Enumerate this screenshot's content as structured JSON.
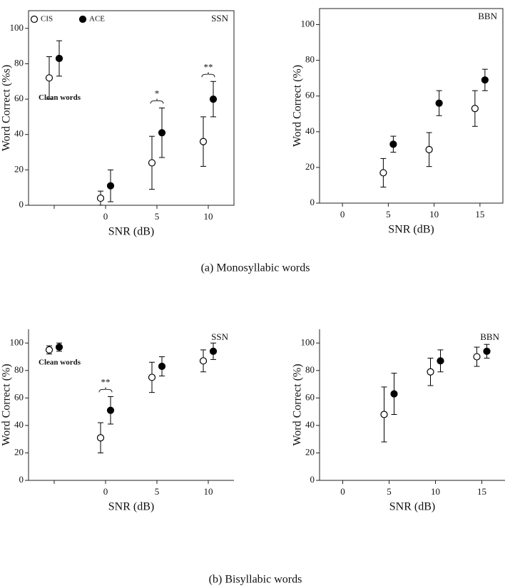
{
  "captions": [
    "(a) Monosyllabic words",
    "(b) Bisyllabic words"
  ],
  "chart_data": [
    {
      "type": "scatter",
      "ylabel": "Word Correct (%s)",
      "xlabel": "SNR (dB)",
      "noise": "SSN",
      "note": "Clean words",
      "categories": [
        null,
        "0",
        "5",
        "10"
      ],
      "ylim": [
        0,
        110
      ],
      "yticks": [
        0,
        20,
        40,
        60,
        80,
        100
      ],
      "frame": true,
      "legend": "upper left",
      "significance": [
        {
          "category": "5",
          "text": "*"
        },
        {
          "category": "10",
          "text": "**"
        }
      ],
      "series": [
        {
          "name": "CIS",
          "color": "#000000",
          "marker_fill": "#ffffff",
          "values": [
            72,
            4,
            24,
            36
          ],
          "errors": [
            12,
            4,
            15,
            14
          ]
        },
        {
          "name": "ACE",
          "color": "#000000",
          "marker_fill": "#000000",
          "values": [
            83,
            11,
            41,
            60
          ],
          "errors": [
            10,
            9,
            14,
            10
          ]
        }
      ]
    },
    {
      "type": "scatter",
      "ylabel": "Word Correct (%)",
      "xlabel": "SNR (dB)",
      "noise": "BBN",
      "categories": [
        "0",
        "5",
        "10",
        "15"
      ],
      "ylim": [
        0,
        109
      ],
      "yticks": [
        0,
        20,
        40,
        60,
        80,
        100
      ],
      "frame": true,
      "series": [
        {
          "name": "CIS",
          "color": "#000000",
          "marker_fill": "#ffffff",
          "values": [
            null,
            17,
            30,
            53
          ],
          "errors": [
            null,
            8,
            9.5,
            10
          ]
        },
        {
          "name": "ACE",
          "color": "#000000",
          "marker_fill": "#000000",
          "values": [
            null,
            33,
            56,
            69
          ],
          "errors": [
            null,
            4.5,
            7,
            6
          ]
        }
      ]
    },
    {
      "type": "scatter",
      "ylabel": "Word Correct (%)",
      "xlabel": "SNR (dB)",
      "noise": "SSN",
      "note": "Clean words",
      "categories": [
        null,
        "0",
        "5",
        "10"
      ],
      "ylim": [
        0,
        110
      ],
      "yticks": [
        0,
        20,
        40,
        60,
        80,
        100
      ],
      "frame": false,
      "significance": [
        {
          "category": "0",
          "text": "**"
        }
      ],
      "series": [
        {
          "name": "CIS",
          "color": "#000000",
          "marker_fill": "#ffffff",
          "values": [
            95,
            31,
            75,
            87
          ],
          "errors": [
            3,
            11,
            11,
            8
          ]
        },
        {
          "name": "ACE",
          "color": "#000000",
          "marker_fill": "#000000",
          "values": [
            97,
            51,
            83,
            94
          ],
          "errors": [
            3,
            10,
            7,
            6
          ]
        }
      ]
    },
    {
      "type": "scatter",
      "ylabel": "Word Correct (%)",
      "xlabel": "SNR (dB)",
      "noise": "BBN",
      "categories": [
        "0",
        "5",
        "10",
        "15"
      ],
      "ylim": [
        0,
        110
      ],
      "yticks": [
        0,
        20,
        40,
        60,
        80,
        100
      ],
      "frame": false,
      "series": [
        {
          "name": "CIS",
          "color": "#000000",
          "marker_fill": "#ffffff",
          "values": [
            null,
            48,
            79,
            90
          ],
          "errors": [
            null,
            20,
            10,
            7
          ]
        },
        {
          "name": "ACE",
          "color": "#000000",
          "marker_fill": "#000000",
          "values": [
            null,
            63,
            87,
            94
          ],
          "errors": [
            null,
            15,
            8,
            5
          ]
        }
      ]
    }
  ]
}
